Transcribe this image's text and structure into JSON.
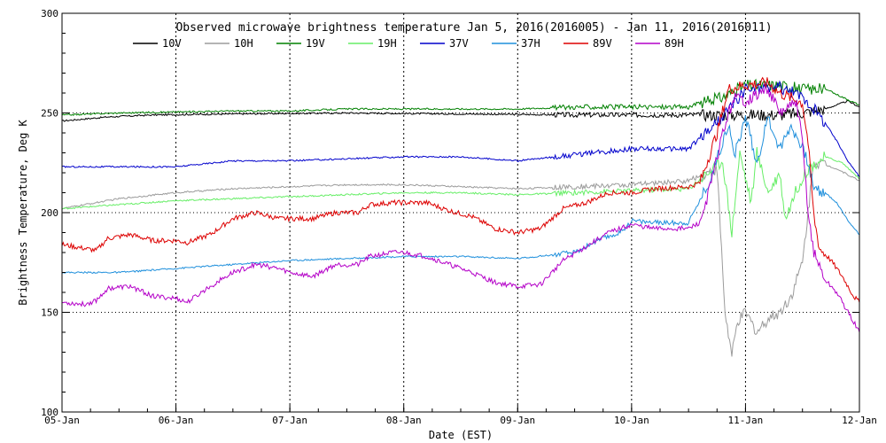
{
  "chart_data": {
    "type": "line",
    "title": "Observed microwave brightness temperature Jan  5, 2016(2016005) - Jan 11, 2016(2016011)",
    "xlabel": "Date (EST)",
    "ylabel": "Brightness Temperature, Deg K",
    "xlim": [
      0,
      7
    ],
    "ylim": [
      100,
      300
    ],
    "grid": true,
    "legend_position": "top",
    "x_tick_labels": [
      "05-Jan",
      "06-Jan",
      "07-Jan",
      "08-Jan",
      "09-Jan",
      "10-Jan",
      "11-Jan",
      "12-Jan"
    ],
    "y_ticks": [
      100,
      150,
      200,
      250,
      300
    ],
    "series": [
      {
        "name": "10V",
        "color": "#000000",
        "points": [
          [
            0,
            246
          ],
          [
            0.4,
            248
          ],
          [
            0.8,
            249
          ],
          [
            1.5,
            249.5
          ],
          [
            2.5,
            250
          ],
          [
            3.5,
            249.5
          ],
          [
            4.5,
            249
          ],
          [
            5.5,
            249
          ],
          [
            6.0,
            249
          ],
          [
            6.3,
            249
          ],
          [
            6.5,
            250
          ],
          [
            6.7,
            252
          ],
          [
            6.9,
            256
          ],
          [
            7.0,
            253
          ]
        ]
      },
      {
        "name": "10H",
        "color": "#9b9b9b",
        "points": [
          [
            0,
            202
          ],
          [
            0.5,
            207
          ],
          [
            1.0,
            210
          ],
          [
            1.5,
            212
          ],
          [
            2.0,
            213
          ],
          [
            2.5,
            214
          ],
          [
            3.0,
            214
          ],
          [
            3.5,
            213
          ],
          [
            4.0,
            212
          ],
          [
            4.5,
            213
          ],
          [
            5.0,
            214
          ],
          [
            5.5,
            216
          ],
          [
            5.75,
            222
          ],
          [
            5.82,
            150
          ],
          [
            5.88,
            128
          ],
          [
            5.93,
            145
          ],
          [
            6.0,
            150
          ],
          [
            6.1,
            140
          ],
          [
            6.2,
            147
          ],
          [
            6.3,
            150
          ],
          [
            6.4,
            158
          ],
          [
            6.5,
            175
          ],
          [
            6.6,
            226
          ],
          [
            6.8,
            222
          ],
          [
            7.0,
            216
          ]
        ]
      },
      {
        "name": "19V",
        "color": "#008000",
        "points": [
          [
            0,
            249
          ],
          [
            0.5,
            250
          ],
          [
            1.0,
            250.5
          ],
          [
            1.5,
            251
          ],
          [
            2.0,
            251
          ],
          [
            2.5,
            252
          ],
          [
            3.0,
            252
          ],
          [
            3.5,
            252
          ],
          [
            4.0,
            252
          ],
          [
            4.5,
            253
          ],
          [
            5.0,
            253
          ],
          [
            5.5,
            253
          ],
          [
            5.8,
            258
          ],
          [
            6.0,
            264
          ],
          [
            6.3,
            264
          ],
          [
            6.5,
            262
          ],
          [
            6.7,
            262
          ],
          [
            7.0,
            254
          ]
        ]
      },
      {
        "name": "19H",
        "color": "#66ee66",
        "points": [
          [
            0,
            202
          ],
          [
            0.5,
            204
          ],
          [
            1.0,
            206
          ],
          [
            1.5,
            207
          ],
          [
            2.0,
            208
          ],
          [
            2.5,
            209
          ],
          [
            3.0,
            210
          ],
          [
            3.5,
            210
          ],
          [
            4.0,
            209
          ],
          [
            4.5,
            210
          ],
          [
            5.0,
            211
          ],
          [
            5.5,
            212
          ],
          [
            5.8,
            226
          ],
          [
            5.88,
            190
          ],
          [
            5.95,
            230
          ],
          [
            6.05,
            205
          ],
          [
            6.1,
            230
          ],
          [
            6.2,
            210
          ],
          [
            6.3,
            220
          ],
          [
            6.35,
            197
          ],
          [
            6.45,
            212
          ],
          [
            6.55,
            222
          ],
          [
            6.7,
            228
          ],
          [
            6.85,
            225
          ],
          [
            7.0,
            217
          ]
        ]
      },
      {
        "name": "37V",
        "color": "#0000cc",
        "points": [
          [
            0,
            223
          ],
          [
            0.5,
            223
          ],
          [
            1.0,
            223
          ],
          [
            1.5,
            226
          ],
          [
            2.0,
            226
          ],
          [
            2.5,
            227
          ],
          [
            3.0,
            228
          ],
          [
            3.5,
            228
          ],
          [
            4.0,
            226
          ],
          [
            4.5,
            229
          ],
          [
            5.0,
            232
          ],
          [
            5.5,
            232
          ],
          [
            5.8,
            248
          ],
          [
            6.0,
            262
          ],
          [
            6.3,
            263
          ],
          [
            6.5,
            258
          ],
          [
            6.6,
            252
          ],
          [
            6.7,
            245
          ],
          [
            6.8,
            236
          ],
          [
            6.9,
            226
          ],
          [
            7.0,
            218
          ]
        ]
      },
      {
        "name": "37H",
        "color": "#1e8fdc",
        "points": [
          [
            0,
            170
          ],
          [
            0.5,
            170
          ],
          [
            1.0,
            172
          ],
          [
            1.5,
            174
          ],
          [
            2.0,
            176
          ],
          [
            2.5,
            177
          ],
          [
            3.0,
            178
          ],
          [
            3.5,
            178
          ],
          [
            4.0,
            177
          ],
          [
            4.5,
            180
          ],
          [
            4.7,
            186
          ],
          [
            4.9,
            190
          ],
          [
            5.0,
            196
          ],
          [
            5.2,
            195
          ],
          [
            5.5,
            195
          ],
          [
            5.7,
            218
          ],
          [
            5.85,
            245
          ],
          [
            5.9,
            228
          ],
          [
            6.0,
            248
          ],
          [
            6.1,
            225
          ],
          [
            6.2,
            248
          ],
          [
            6.3,
            232
          ],
          [
            6.4,
            244
          ],
          [
            6.5,
            232
          ],
          [
            6.55,
            225
          ],
          [
            6.6,
            212
          ],
          [
            6.7,
            210
          ],
          [
            6.8,
            205
          ],
          [
            6.9,
            196
          ],
          [
            7.0,
            189
          ]
        ]
      },
      {
        "name": "89V",
        "color": "#dd0000",
        "points": [
          [
            0,
            184
          ],
          [
            0.3,
            181
          ],
          [
            0.4,
            187
          ],
          [
            0.6,
            189
          ],
          [
            0.8,
            186
          ],
          [
            1.0,
            186
          ],
          [
            1.1,
            185
          ],
          [
            1.3,
            189
          ],
          [
            1.5,
            197
          ],
          [
            1.7,
            200
          ],
          [
            1.9,
            197
          ],
          [
            2.0,
            197
          ],
          [
            2.2,
            197
          ],
          [
            2.4,
            200
          ],
          [
            2.6,
            200
          ],
          [
            2.7,
            204
          ],
          [
            2.9,
            205
          ],
          [
            3.0,
            205
          ],
          [
            3.2,
            205
          ],
          [
            3.4,
            201
          ],
          [
            3.6,
            198
          ],
          [
            3.8,
            192
          ],
          [
            4.0,
            190
          ],
          [
            4.2,
            192
          ],
          [
            4.4,
            202
          ],
          [
            4.6,
            205
          ],
          [
            4.8,
            210
          ],
          [
            5.0,
            210
          ],
          [
            5.2,
            212
          ],
          [
            5.5,
            213
          ],
          [
            5.6,
            215
          ],
          [
            5.75,
            240
          ],
          [
            5.85,
            262
          ],
          [
            6.0,
            264
          ],
          [
            6.2,
            265
          ],
          [
            6.3,
            260
          ],
          [
            6.5,
            255
          ],
          [
            6.55,
            235
          ],
          [
            6.6,
            198
          ],
          [
            6.65,
            182
          ],
          [
            6.75,
            176
          ],
          [
            6.85,
            168
          ],
          [
            6.95,
            158
          ],
          [
            7.0,
            155
          ]
        ]
      },
      {
        "name": "89H",
        "color": "#b400c8",
        "points": [
          [
            0,
            155
          ],
          [
            0.2,
            154
          ],
          [
            0.3,
            156
          ],
          [
            0.4,
            162
          ],
          [
            0.6,
            163
          ],
          [
            0.8,
            158
          ],
          [
            1.0,
            157
          ],
          [
            1.1,
            155
          ],
          [
            1.3,
            163
          ],
          [
            1.5,
            170
          ],
          [
            1.7,
            174
          ],
          [
            1.9,
            172
          ],
          [
            2.0,
            170
          ],
          [
            2.2,
            168
          ],
          [
            2.4,
            174
          ],
          [
            2.6,
            174
          ],
          [
            2.7,
            178
          ],
          [
            2.9,
            180
          ],
          [
            3.0,
            180
          ],
          [
            3.2,
            178
          ],
          [
            3.4,
            174
          ],
          [
            3.6,
            170
          ],
          [
            3.8,
            165
          ],
          [
            4.0,
            163
          ],
          [
            4.2,
            164
          ],
          [
            4.4,
            176
          ],
          [
            4.6,
            183
          ],
          [
            4.8,
            190
          ],
          [
            5.0,
            194
          ],
          [
            5.2,
            192
          ],
          [
            5.5,
            192
          ],
          [
            5.6,
            195
          ],
          [
            5.7,
            215
          ],
          [
            5.8,
            240
          ],
          [
            5.9,
            258
          ],
          [
            6.0,
            256
          ],
          [
            6.2,
            262
          ],
          [
            6.3,
            250
          ],
          [
            6.45,
            255
          ],
          [
            6.5,
            235
          ],
          [
            6.55,
            200
          ],
          [
            6.6,
            180
          ],
          [
            6.7,
            166
          ],
          [
            6.8,
            160
          ],
          [
            6.9,
            150
          ],
          [
            7.0,
            140
          ]
        ]
      }
    ]
  }
}
